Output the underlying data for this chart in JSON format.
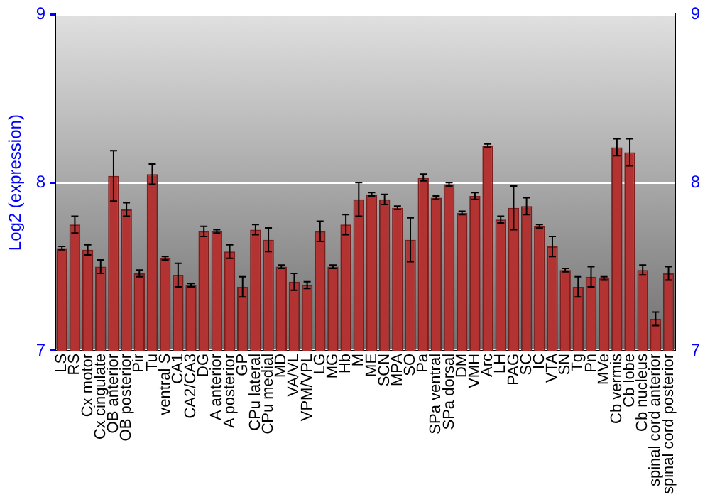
{
  "chart_data": {
    "type": "bar",
    "ylabel": "Log2 (expression)",
    "categories": [
      "LS",
      "RS",
      "Cx motor",
      "Cx cingulate",
      "OB anterior",
      "OB posterior",
      "Pir",
      "Tu",
      "ventral S",
      "CA1",
      "CA2/CA3",
      "DG",
      "A anterior",
      "A posterior",
      "GP",
      "CPu lateral",
      "CPu medial",
      "MD",
      "VA/VL",
      "VPM/VPL",
      "LG",
      "MG",
      "Hb",
      "M",
      "ME",
      "SCN",
      "MPA",
      "SO",
      "Pa",
      "SPa ventral",
      "SPa dorsal",
      "DM",
      "VMH",
      "Arc",
      "LH",
      "PAG",
      "SC",
      "IC",
      "VTA",
      "SN",
      "Tg",
      "Pn",
      "MVe",
      "Cb vermis",
      "Cb lobe",
      "Cb nucleus",
      "spinal cord anterior",
      "spinal cord posterior"
    ],
    "values": [
      7.61,
      7.75,
      7.6,
      7.5,
      8.04,
      7.84,
      7.46,
      8.05,
      7.55,
      7.45,
      7.39,
      7.71,
      7.71,
      7.59,
      7.38,
      7.72,
      7.66,
      7.5,
      7.41,
      7.39,
      7.71,
      7.5,
      7.75,
      7.9,
      7.93,
      7.9,
      7.85,
      7.66,
      8.03,
      7.91,
      7.99,
      7.82,
      7.92,
      8.22,
      7.78,
      7.85,
      7.86,
      7.74,
      7.62,
      7.48,
      7.38,
      7.44,
      7.43,
      8.21,
      8.18,
      7.48,
      7.19,
      7.46
    ],
    "errors": [
      0.01,
      0.05,
      0.03,
      0.04,
      0.15,
      0.04,
      0.02,
      0.06,
      0.01,
      0.07,
      0.01,
      0.03,
      0.01,
      0.04,
      0.06,
      0.03,
      0.07,
      0.01,
      0.05,
      0.02,
      0.06,
      0.01,
      0.06,
      0.1,
      0.01,
      0.03,
      0.01,
      0.13,
      0.02,
      0.01,
      0.01,
      0.01,
      0.02,
      0.01,
      0.02,
      0.13,
      0.05,
      0.01,
      0.06,
      0.01,
      0.06,
      0.06,
      0.01,
      0.05,
      0.08,
      0.03,
      0.04,
      0.04
    ],
    "color": "#b33232",
    "ylim": [
      7,
      9
    ],
    "yticks": [
      7,
      8,
      9
    ],
    "y2lim": [
      7,
      9
    ],
    "y2ticks": [
      7,
      8,
      9
    ],
    "grid": "y",
    "legend": false
  }
}
